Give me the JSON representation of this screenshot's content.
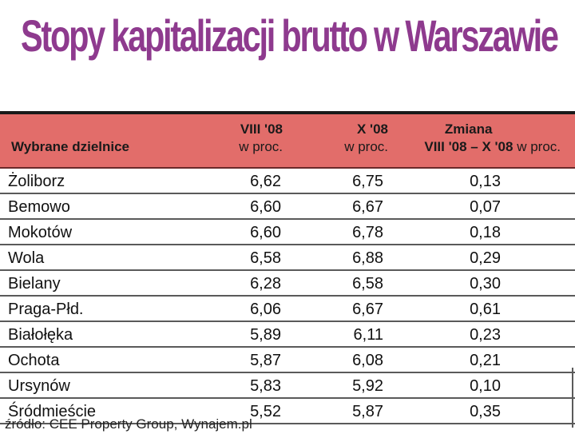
{
  "title": "Stopy kapitalizacji brutto w Warszawie",
  "source": "źródło: CEE Property Group, Wynajem.pl",
  "chart_data": {
    "type": "table",
    "title": "Stopy kapitalizacji brutto w Warszawie",
    "columns": [
      {
        "key": "district",
        "label": "Wybrane dzielnice",
        "unit": ""
      },
      {
        "key": "aug08",
        "label": "VIII '08",
        "unit": "w proc."
      },
      {
        "key": "oct08",
        "label": "X '08",
        "unit": "w proc."
      },
      {
        "key": "change",
        "label": "Zmiana",
        "label2": "VIII '08 – X '08",
        "unit": "w proc."
      }
    ],
    "rows": [
      {
        "district": "Żoliborz",
        "aug08": "6,62",
        "oct08": "6,75",
        "change": "0,13"
      },
      {
        "district": "Bemowo",
        "aug08": "6,60",
        "oct08": "6,67",
        "change": "0,07"
      },
      {
        "district": "Mokotów",
        "aug08": "6,60",
        "oct08": "6,78",
        "change": "0,18"
      },
      {
        "district": "Wola",
        "aug08": "6,58",
        "oct08": "6,88",
        "change": "0,29"
      },
      {
        "district": "Bielany",
        "aug08": "6,28",
        "oct08": "6,58",
        "change": "0,30"
      },
      {
        "district": "Praga-Płd.",
        "aug08": "6,06",
        "oct08": "6,67",
        "change": "0,61"
      },
      {
        "district": "Białołęka",
        "aug08": "5,89",
        "oct08": "6,11",
        "change": "0,23"
      },
      {
        "district": "Ochota",
        "aug08": "5,87",
        "oct08": "6,08",
        "change": "0,21"
      },
      {
        "district": "Ursynów",
        "aug08": "5,83",
        "oct08": "5,92",
        "change": "0,10"
      },
      {
        "district": "Śródmieście",
        "aug08": "5,52",
        "oct08": "5,87",
        "change": "0,35"
      }
    ]
  },
  "colors": {
    "title": "#8e3a8e",
    "header_bg": "#e26d6a",
    "rule": "#5a5a5a"
  }
}
